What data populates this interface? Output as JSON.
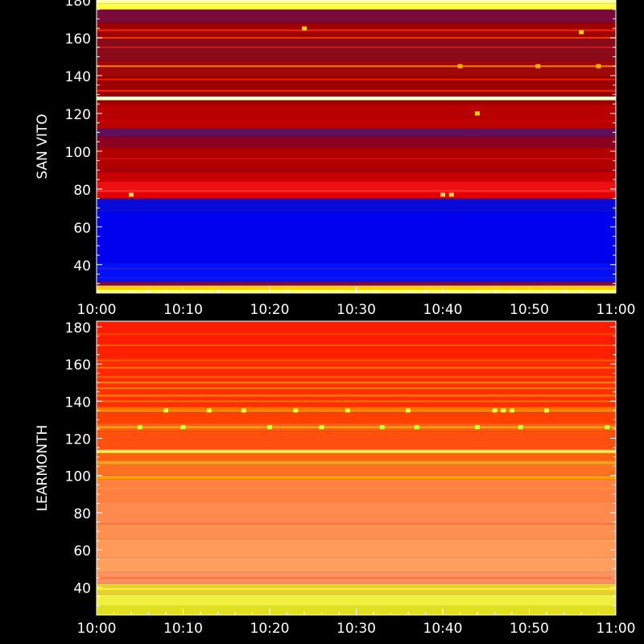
{
  "chart_data": [
    {
      "type": "heatmap",
      "ylabel": "SAN VITO",
      "xlabel": "",
      "title": "",
      "x_tick_labels": [
        "10:00",
        "10:10",
        "10:20",
        "10:30",
        "10:40",
        "10:50",
        "11:00"
      ],
      "xlim": [
        "10:00",
        "11:00"
      ],
      "y_ticks": [
        40,
        60,
        80,
        100,
        120,
        140,
        160,
        180
      ],
      "ylim": [
        25,
        180
      ],
      "colormap": [
        "#0000ff",
        "#4b0082",
        "#800000",
        "#c00000",
        "#ff0000",
        "#ff8000",
        "#ffff00",
        "#ffff99"
      ],
      "bands": [
        {
          "from": 25,
          "to": 27,
          "color": "#ffff66"
        },
        {
          "from": 27,
          "to": 29,
          "color": "#ffd000"
        },
        {
          "from": 29,
          "to": 31,
          "color": "#7a0a40"
        },
        {
          "from": 31,
          "to": 41,
          "color": "#0010ff"
        },
        {
          "from": 41,
          "to": 68,
          "color": "#0000ee"
        },
        {
          "from": 68,
          "to": 75,
          "color": "#0a0ad8"
        },
        {
          "from": 75,
          "to": 78,
          "color": "#e00000"
        },
        {
          "from": 78,
          "to": 84,
          "color": "#ee1010"
        },
        {
          "from": 84,
          "to": 89,
          "color": "#c80000"
        },
        {
          "from": 89,
          "to": 91,
          "color": "#a00010"
        },
        {
          "from": 91,
          "to": 102,
          "color": "#b00000"
        },
        {
          "from": 102,
          "to": 108,
          "color": "#8a0020"
        },
        {
          "from": 108,
          "to": 112,
          "color": "#60105a"
        },
        {
          "from": 112,
          "to": 125,
          "color": "#b80000"
        },
        {
          "from": 125,
          "to": 127,
          "color": "#a00000"
        },
        {
          "from": 127,
          "to": 129,
          "color": "#ffffcc"
        },
        {
          "from": 129,
          "to": 140,
          "color": "#9a0000"
        },
        {
          "from": 140,
          "to": 148,
          "color": "#a00808"
        },
        {
          "from": 148,
          "to": 160,
          "color": "#8a0a1a"
        },
        {
          "from": 160,
          "to": 168,
          "color": "#a00000"
        },
        {
          "from": 168,
          "to": 175,
          "color": "#7a0a3a"
        },
        {
          "from": 175,
          "to": 178,
          "color": "#ffff40"
        },
        {
          "from": 178,
          "to": 180,
          "color": "#ffff80"
        }
      ],
      "lines": [
        {
          "y": 145,
          "color": "#ff9000"
        },
        {
          "y": 155,
          "color": "#d02020"
        },
        {
          "y": 160,
          "color": "#ff4000"
        },
        {
          "y": 164,
          "color": "#ff3000"
        },
        {
          "y": 138,
          "color": "#ff2000"
        },
        {
          "y": 132,
          "color": "#ff3000"
        },
        {
          "y": 116,
          "color": "#d00000"
        },
        {
          "y": 96,
          "color": "#d01010"
        },
        {
          "y": 79,
          "color": "#ff3030"
        },
        {
          "y": 38,
          "color": "#3020c0"
        },
        {
          "y": 33,
          "color": "#2020d0"
        }
      ],
      "bursts": [
        {
          "x": "10:40",
          "y": 77,
          "color": "#ffd040"
        },
        {
          "x": "10:41",
          "y": 77,
          "color": "#ffd040"
        },
        {
          "x": "10:04",
          "y": 77,
          "color": "#ffd040"
        },
        {
          "x": "10:42",
          "y": 145,
          "color": "#ffb000"
        },
        {
          "x": "10:51",
          "y": 145,
          "color": "#ffb000"
        },
        {
          "x": "10:58",
          "y": 145,
          "color": "#ffb000"
        },
        {
          "x": "10:56",
          "y": 163,
          "color": "#ffd000"
        },
        {
          "x": "10:24",
          "y": 165,
          "color": "#ffd000"
        },
        {
          "x": "10:44",
          "y": 120,
          "color": "#ffd000"
        }
      ]
    },
    {
      "type": "heatmap",
      "ylabel": "LEARMONTH",
      "xlabel": "",
      "title": "",
      "x_tick_labels": [
        "10:00",
        "10:10",
        "10:20",
        "10:30",
        "10:40",
        "10:50",
        "11:00"
      ],
      "xlim": [
        "10:00",
        "11:00"
      ],
      "y_ticks": [
        40,
        60,
        80,
        100,
        120,
        140,
        160,
        180
      ],
      "ylim": [
        25,
        183
      ],
      "colormap": [
        "#ff0000",
        "#ff4000",
        "#ff8000",
        "#ffa060",
        "#ffff00"
      ],
      "bands": [
        {
          "from": 25,
          "to": 30,
          "color": "#e0e020"
        },
        {
          "from": 30,
          "to": 36,
          "color": "#f0f040"
        },
        {
          "from": 36,
          "to": 42,
          "color": "#e6d030"
        },
        {
          "from": 42,
          "to": 48,
          "color": "#ff9060"
        },
        {
          "from": 48,
          "to": 56,
          "color": "#ffa060"
        },
        {
          "from": 56,
          "to": 66,
          "color": "#ff9a58"
        },
        {
          "from": 66,
          "to": 74,
          "color": "#ff9050"
        },
        {
          "from": 74,
          "to": 86,
          "color": "#ff8a50"
        },
        {
          "from": 86,
          "to": 98,
          "color": "#ff8040"
        },
        {
          "from": 98,
          "to": 100,
          "color": "#ffa000"
        },
        {
          "from": 100,
          "to": 106,
          "color": "#ff7020"
        },
        {
          "from": 106,
          "to": 108,
          "color": "#ffa020"
        },
        {
          "from": 108,
          "to": 112,
          "color": "#ff6010"
        },
        {
          "from": 112,
          "to": 114,
          "color": "#ffc040"
        },
        {
          "from": 114,
          "to": 124,
          "color": "#ff5010"
        },
        {
          "from": 124,
          "to": 128,
          "color": "#ff6010"
        },
        {
          "from": 128,
          "to": 134,
          "color": "#ff4000"
        },
        {
          "from": 134,
          "to": 137,
          "color": "#ff7000"
        },
        {
          "from": 137,
          "to": 150,
          "color": "#ff3000"
        },
        {
          "from": 150,
          "to": 162,
          "color": "#ff2a00"
        },
        {
          "from": 162,
          "to": 172,
          "color": "#ff2000"
        },
        {
          "from": 172,
          "to": 183,
          "color": "#ff1c00"
        }
      ],
      "lines": [
        {
          "y": 39,
          "color": "#ffff40"
        },
        {
          "y": 45,
          "color": "#ff7040"
        },
        {
          "y": 74,
          "color": "#ff7040"
        },
        {
          "y": 93,
          "color": "#ff9040"
        },
        {
          "y": 113,
          "color": "#ffff60"
        },
        {
          "y": 126,
          "color": "#ffc020"
        },
        {
          "y": 135,
          "color": "#ff9000"
        },
        {
          "y": 140,
          "color": "#ff8000"
        },
        {
          "y": 143,
          "color": "#ffa000"
        },
        {
          "y": 147,
          "color": "#ff9000"
        },
        {
          "y": 150,
          "color": "#ffa020"
        },
        {
          "y": 153,
          "color": "#ff7000"
        },
        {
          "y": 158,
          "color": "#ff8000"
        },
        {
          "y": 162,
          "color": "#ff7000"
        },
        {
          "y": 170,
          "color": "#ff6000"
        },
        {
          "y": 176,
          "color": "#ff5000"
        }
      ],
      "bursts": [
        {
          "x": "10:08",
          "y": 135,
          "color": "#e8ff40"
        },
        {
          "x": "10:13",
          "y": 135,
          "color": "#e8ff40"
        },
        {
          "x": "10:17",
          "y": 135,
          "color": "#e8ff40"
        },
        {
          "x": "10:23",
          "y": 135,
          "color": "#e8ff40"
        },
        {
          "x": "10:29",
          "y": 135,
          "color": "#e8ff40"
        },
        {
          "x": "10:36",
          "y": 135,
          "color": "#e8ff40"
        },
        {
          "x": "10:46",
          "y": 135,
          "color": "#e8ff40"
        },
        {
          "x": "10:47",
          "y": 135,
          "color": "#e8ff40"
        },
        {
          "x": "10:48",
          "y": 135,
          "color": "#e8ff40"
        },
        {
          "x": "10:52",
          "y": 135,
          "color": "#e8ff40"
        },
        {
          "x": "10:05",
          "y": 126,
          "color": "#d0ff40"
        },
        {
          "x": "10:10",
          "y": 126,
          "color": "#d0ff40"
        },
        {
          "x": "10:20",
          "y": 126,
          "color": "#d0ff40"
        },
        {
          "x": "10:26",
          "y": 126,
          "color": "#d0ff40"
        },
        {
          "x": "10:33",
          "y": 126,
          "color": "#d0ff40"
        },
        {
          "x": "10:37",
          "y": 126,
          "color": "#d0ff40"
        },
        {
          "x": "10:44",
          "y": 126,
          "color": "#d0ff40"
        },
        {
          "x": "10:49",
          "y": 126,
          "color": "#d0ff40"
        },
        {
          "x": "10:59",
          "y": 126,
          "color": "#d0ff40"
        }
      ]
    }
  ]
}
